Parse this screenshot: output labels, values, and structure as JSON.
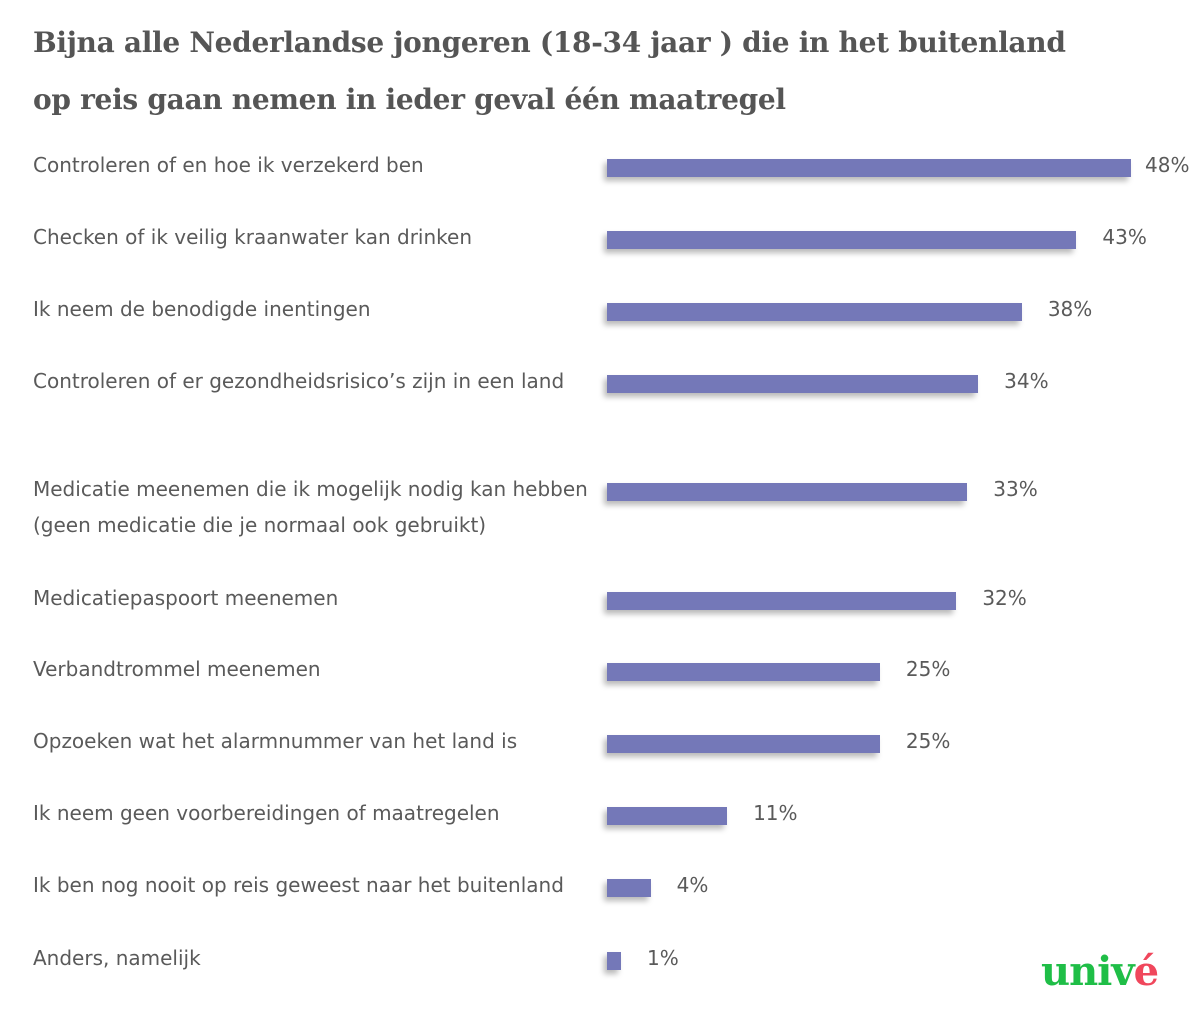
{
  "title_lines": [
    "Bijna alle Nederlandse jongeren (18-34 jaar ) die in het buitenland",
    "op reis gaan nemen in ieder geval één maatregel"
  ],
  "chart_data": {
    "type": "bar",
    "orientation": "horizontal",
    "title": "Bijna alle Nederlandse jongeren (18-34 jaar ) die in het buitenland op reis gaan nemen in ieder geval één maatregel",
    "categories": [
      "Controleren of en hoe ik verzekerd ben",
      "Checken of ik veilig kraanwater kan drinken",
      "Ik neem de benodigde inentingen",
      "Controleren of er gezondheidsrisico’s zijn in een land",
      "Medicatie meenemen die ik mogelijk nodig kan hebben (geen medicatie die je normaal ook gebruikt)",
      "Medicatiepaspoort meenemen",
      "Verbandtrommel meenemen",
      "Opzoeken wat het alarmnummer van het land is",
      "Ik neem geen voorbereidingen of maatregelen",
      "Ik ben nog nooit op reis geweest naar het buitenland",
      "Anders, namelijk"
    ],
    "values": [
      48,
      43,
      38,
      34,
      33,
      32,
      25,
      25,
      11,
      4,
      1
    ],
    "value_labels": [
      "48%",
      "43%",
      "38%",
      "34%",
      "33%",
      "32%",
      "25%",
      "25%",
      "11%",
      "4%",
      "1%"
    ],
    "unit": "%",
    "bar_color": "#7478b8",
    "grid": false
  },
  "logo": {
    "text_main": "univ",
    "text_accent": "é",
    "color_main": "#1fbe47",
    "color_accent": "#f0475c"
  }
}
